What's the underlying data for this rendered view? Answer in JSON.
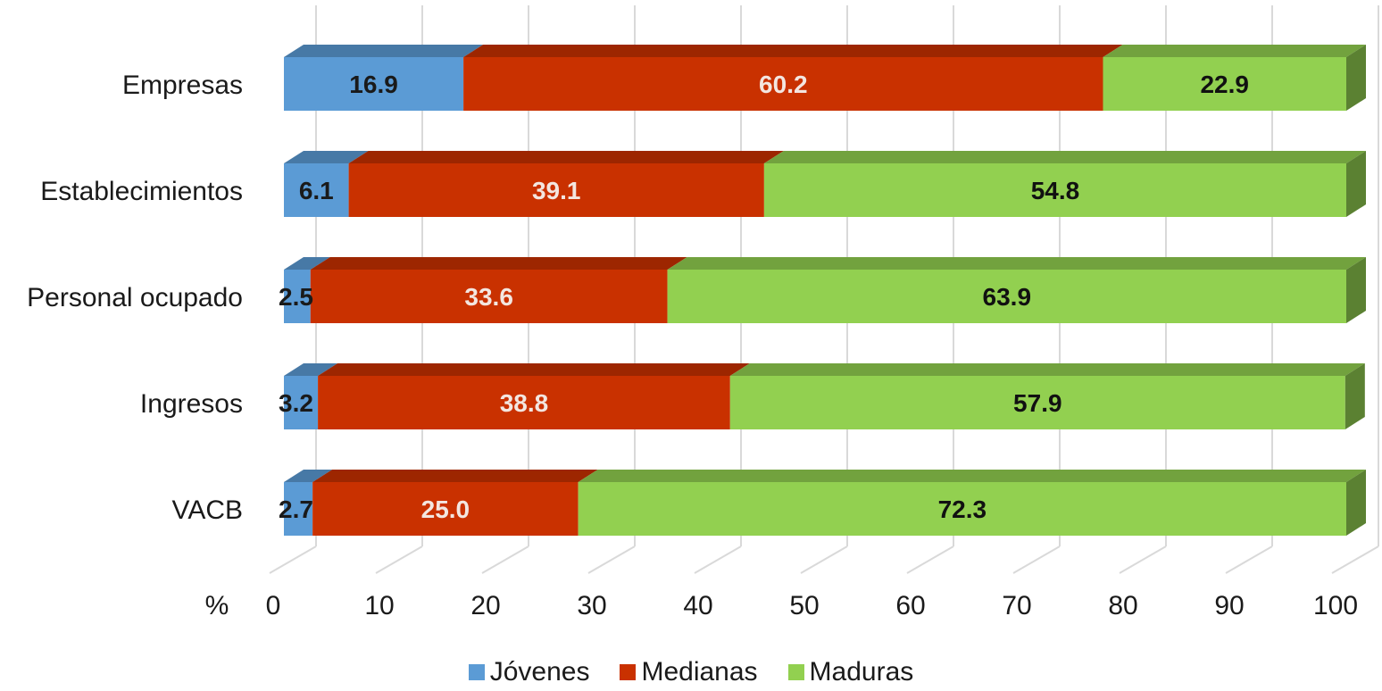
{
  "chart_data": {
    "type": "bar",
    "orientation": "horizontal",
    "stacked": true,
    "style": "3d",
    "categories": [
      "Empresas",
      "Establecimientos",
      "Personal ocupado",
      "Ingresos",
      "VACB"
    ],
    "series": [
      {
        "name": "Jóvenes",
        "color": "#5b9bd5",
        "label_color": "#1a1a1a",
        "values": [
          16.9,
          6.1,
          2.5,
          3.2,
          2.7
        ]
      },
      {
        "name": "Medianas",
        "color": "#c93100",
        "label_color": "#f3e6e0",
        "values": [
          60.2,
          39.1,
          33.6,
          38.8,
          25.0
        ]
      },
      {
        "name": "Maduras",
        "color": "#92d050",
        "label_color": "#111111",
        "values": [
          22.9,
          54.8,
          63.9,
          57.9,
          72.3
        ]
      }
    ],
    "value_labels": [
      [
        "16.9",
        "6.1",
        "2.5",
        "3.2",
        "2.7"
      ],
      [
        "60.2",
        "39.1",
        "33.6",
        "38.8",
        "25.0"
      ],
      [
        "22.9",
        "54.8",
        "63.9",
        "57.9",
        "72.3"
      ]
    ],
    "x_ticks": [
      "0",
      "10",
      "20",
      "30",
      "40",
      "50",
      "60",
      "70",
      "80",
      "90",
      "100"
    ],
    "xlabel": "%",
    "xlim": [
      0,
      100
    ],
    "grid": true,
    "legend_position": "bottom"
  }
}
